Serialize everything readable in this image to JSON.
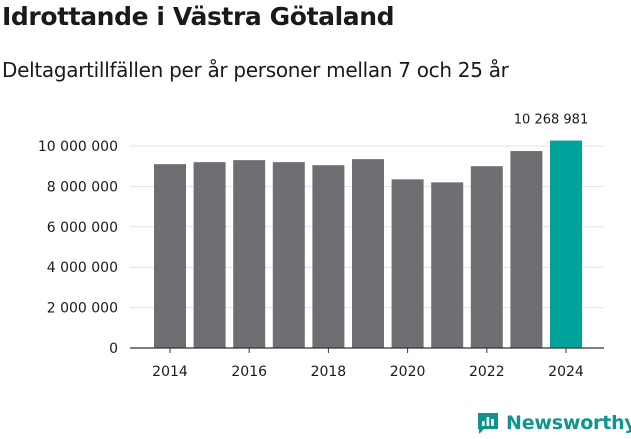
{
  "title": "Idrottande i Västra Götaland",
  "subtitle": "Deltagartillfällen per år personer mellan 7 och 25 år",
  "brand": {
    "name": "Newsworthy",
    "icon": "newsworthy-logo-icon"
  },
  "colors": {
    "bar": "#6f6e73",
    "highlight": "#00a39b",
    "grid": "#e3e3e3",
    "axis": "#333333",
    "text": "#1a1a1a"
  },
  "chart_data": {
    "type": "bar",
    "title": "Idrottande i Västra Götaland",
    "subtitle": "Deltagartillfällen per år personer mellan 7 och 25 år",
    "xlabel": "",
    "ylabel": "",
    "categories": [
      2014,
      2015,
      2016,
      2017,
      2018,
      2019,
      2020,
      2021,
      2022,
      2023,
      2024
    ],
    "values": [
      9100000,
      9200000,
      9300000,
      9200000,
      9050000,
      9350000,
      8350000,
      8200000,
      9000000,
      9750000,
      10268981
    ],
    "ylim": [
      0,
      10000000
    ],
    "yticks": [
      0,
      2000000,
      4000000,
      6000000,
      8000000,
      10000000
    ],
    "ytick_labels": [
      "0",
      "2 000 000",
      "4 000 000",
      "6 000 000",
      "8 000 000",
      "10 000 000"
    ],
    "xticks": [
      2014,
      2016,
      2018,
      2020,
      2022,
      2024
    ],
    "xtick_labels": [
      "2014",
      "2016",
      "2018",
      "2020",
      "2022",
      "2024"
    ],
    "highlight_index": 10,
    "annotation": "10 268 981",
    "grid": true
  }
}
